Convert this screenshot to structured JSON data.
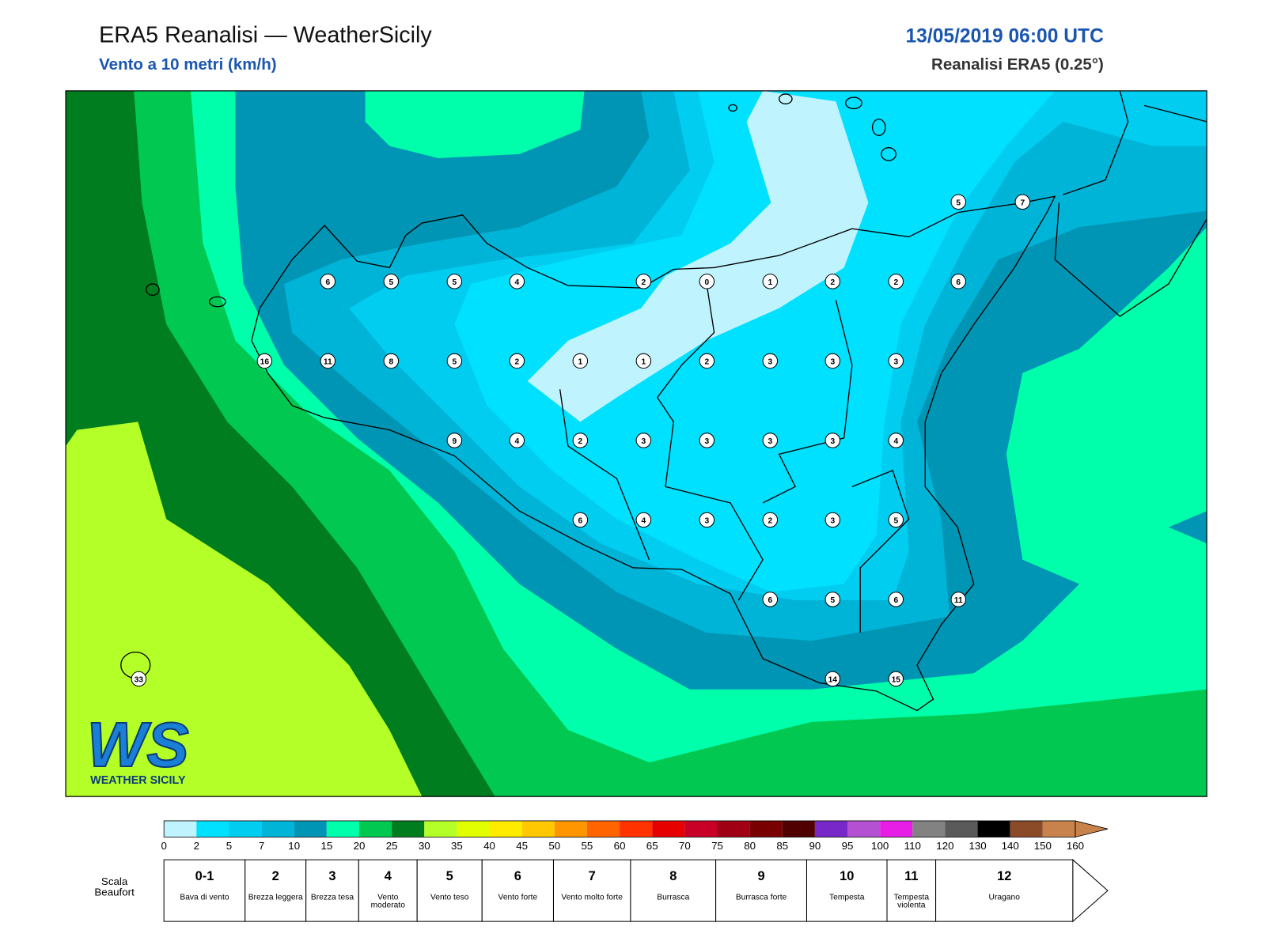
{
  "header": {
    "title": "ERA5 Reanalisi — WeatherSicily",
    "subtitle": "Vento a 10 metri (km/h)",
    "datetime": "13/05/2019 06:00 UTC",
    "source": "Reanalisi ERA5 (0.25°)"
  },
  "stations": [
    5,
    7,
    6,
    5,
    5,
    4,
    2,
    0,
    1,
    2,
    2,
    6,
    16,
    11,
    8,
    5,
    2,
    1,
    1,
    2,
    3,
    3,
    3,
    9,
    4,
    2,
    3,
    3,
    3,
    3,
    4,
    6,
    4,
    3,
    2,
    3,
    5,
    6,
    5,
    6,
    11,
    33,
    14,
    15
  ],
  "logo": {
    "mark": "WS",
    "name": "WEATHER SICILY"
  },
  "colorbar": {
    "ticks": [
      0,
      2,
      5,
      7,
      10,
      15,
      20,
      25,
      30,
      35,
      40,
      45,
      50,
      55,
      60,
      65,
      70,
      75,
      80,
      85,
      90,
      95,
      100,
      110,
      120,
      130,
      140,
      150,
      160
    ],
    "colors": [
      "#bff3fd",
      "#00e0ff",
      "#00cdf0",
      "#00b4d8",
      "#0095b4",
      "#00ffaa",
      "#00c850",
      "#007d1e",
      "#b4ff28",
      "#e1ff00",
      "#ffeb00",
      "#ffc800",
      "#ff9600",
      "#ff6400",
      "#ff3200",
      "#e60000",
      "#c80028",
      "#a00014",
      "#780000",
      "#500000",
      "#7828c8",
      "#b450d2",
      "#e61ee6",
      "#828282",
      "#5a5a5a",
      "#000000",
      "#8c4b28",
      "#c8824b"
    ]
  },
  "beaufort": {
    "label": "Scala Beaufort",
    "levels": [
      {
        "force": "0-1",
        "desc": "Bava di vento"
      },
      {
        "force": "2",
        "desc": "Brezza leggera"
      },
      {
        "force": "3",
        "desc": "Brezza tesa"
      },
      {
        "force": "4",
        "desc": "Vento moderato"
      },
      {
        "force": "5",
        "desc": "Vento teso"
      },
      {
        "force": "6",
        "desc": "Vento forte"
      },
      {
        "force": "7",
        "desc": "Vento molto forte"
      },
      {
        "force": "8",
        "desc": "Burrasca"
      },
      {
        "force": "9",
        "desc": "Burrasca forte"
      },
      {
        "force": "10",
        "desc": "Tempesta"
      },
      {
        "force": "11",
        "desc": "Tempesta violenta"
      },
      {
        "force": "12",
        "desc": "Uragano"
      }
    ]
  }
}
